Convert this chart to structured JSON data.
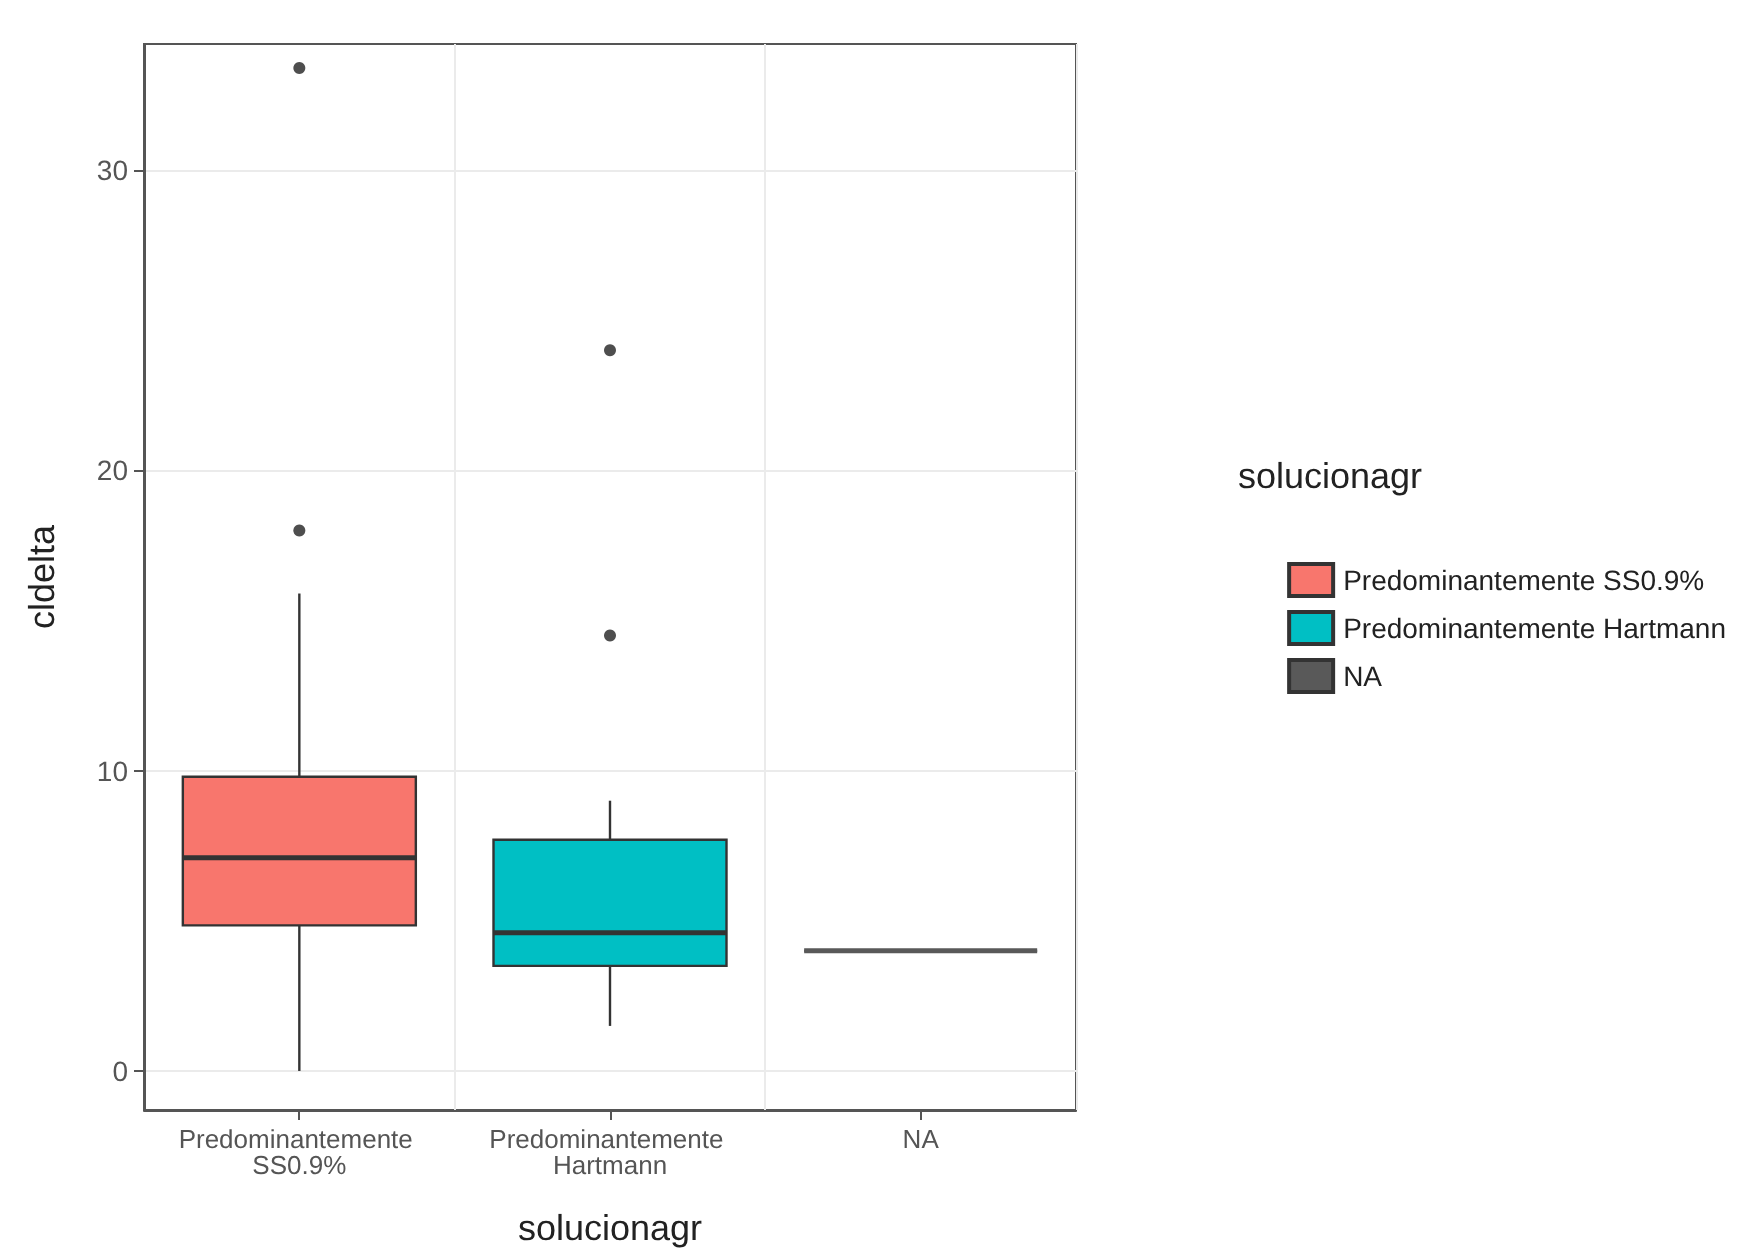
{
  "chart_data": {
    "type": "box",
    "xlabel": "solucionagr",
    "ylabel": "cldelta",
    "legend_title": "solucionagr",
    "categories": [
      "Predominantemente SS0.9%",
      "Predominantemente Hartmann",
      "NA"
    ],
    "series": [
      {
        "name": "Predominantemente SS0.9%",
        "color": "#f8766d",
        "boxes": [
          {
            "low": 0,
            "q1": 4.85,
            "median": 7.1,
            "q3": 9.8,
            "high": 15.9,
            "outliers": [
              18,
              33.4
            ]
          },
          null,
          null
        ]
      },
      {
        "name": "Predominantemente Hartmann",
        "color": "#00bfc4",
        "boxes": [
          null,
          {
            "low": 1.5,
            "q1": 3.5,
            "median": 4.6,
            "q3": 7.7,
            "high": 9,
            "outliers": [
              14.5,
              24
            ]
          },
          null
        ]
      },
      {
        "name": "NA",
        "color": "#595959",
        "boxes": [
          null,
          null,
          {
            "low": 4,
            "q1": 4,
            "median": 4,
            "q3": 4,
            "high": 4
          }
        ]
      }
    ],
    "ylim": [
      -1.3,
      34.2
    ],
    "yticks": [
      0,
      10,
      20,
      30
    ],
    "grid": true,
    "legend": "right"
  }
}
